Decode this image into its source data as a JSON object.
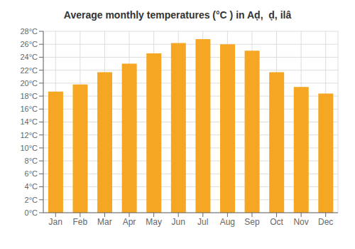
{
  "chart_data": {
    "type": "bar",
    "title": "Average monthly temperatures (°C ) in Aḍ,  ḍ, ilâ",
    "categories": [
      "Jan",
      "Feb",
      "Mar",
      "Apr",
      "May",
      "Jun",
      "Jul",
      "Aug",
      "Sep",
      "Oct",
      "Nov",
      "Dec"
    ],
    "values": [
      18.7,
      19.8,
      21.7,
      23.0,
      24.6,
      26.2,
      26.8,
      26.0,
      25.0,
      21.7,
      19.4,
      18.4
    ],
    "color": "#F5A623",
    "ylim": [
      0,
      28
    ],
    "yticks": [
      {
        "value": 0,
        "label": "0°C"
      },
      {
        "value": 2,
        "label": "2°C"
      },
      {
        "value": 4,
        "label": "4°C"
      },
      {
        "value": 6,
        "label": "6°C"
      },
      {
        "value": 8,
        "label": "8°C"
      },
      {
        "value": 10,
        "label": "10°C"
      },
      {
        "value": 12,
        "label": "12°C"
      },
      {
        "value": 14,
        "label": "14°C"
      },
      {
        "value": 16,
        "label": "16°C"
      },
      {
        "value": 18,
        "label": "18°C"
      },
      {
        "value": 20,
        "label": "20°C"
      },
      {
        "value": 22,
        "label": "22°C"
      },
      {
        "value": 24,
        "label": "24°C"
      },
      {
        "value": 26,
        "label": "26°C"
      },
      {
        "value": 28,
        "label": "28°C"
      }
    ],
    "grid": true
  }
}
